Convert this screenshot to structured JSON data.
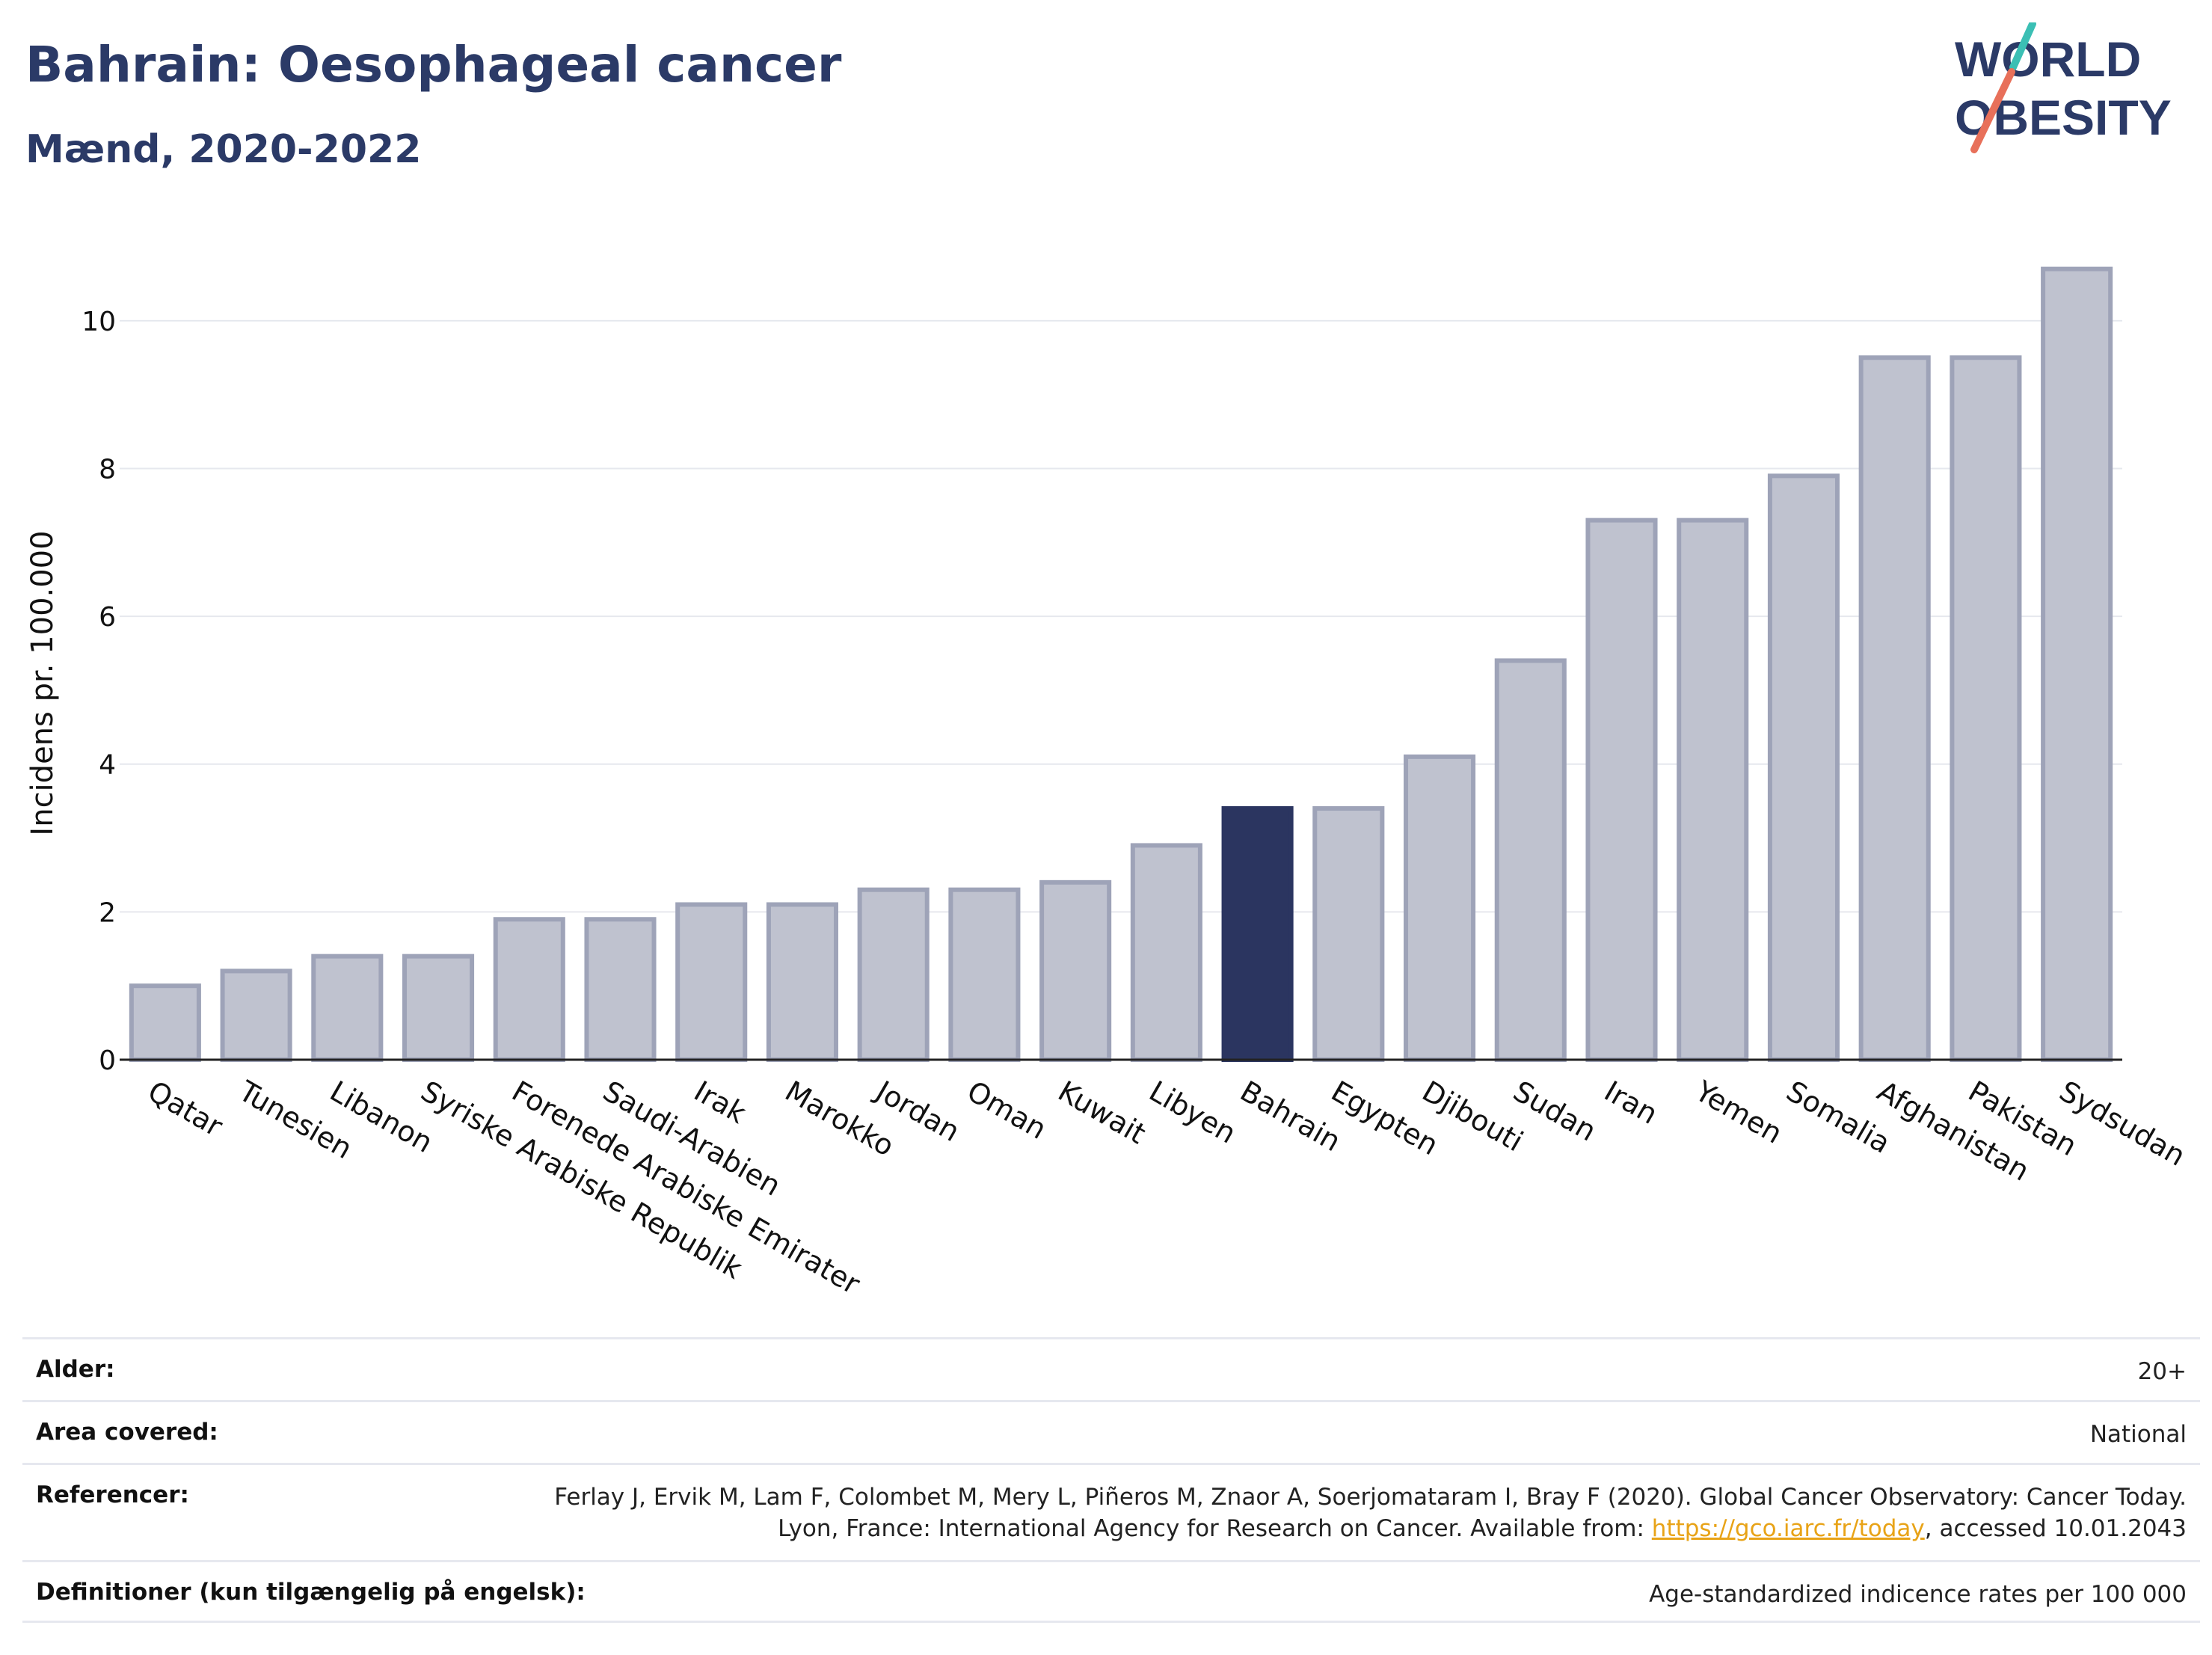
{
  "header": {
    "title": "Bahrain: Oesophageal cancer",
    "subtitle": "Mænd, 2020-2022"
  },
  "logo": {
    "line1": "WORLD",
    "line2": "OBESITY"
  },
  "chart_data": {
    "type": "bar",
    "categories": [
      "Qatar",
      "Tunesien",
      "Libanon",
      "Syriske Arabiske Republik",
      "Forenede Arabiske Emirater",
      "Saudi-Arabien",
      "Irak",
      "Marokko",
      "Jordan",
      "Oman",
      "Kuwait",
      "Libyen",
      "Bahrain",
      "Egypten",
      "Djibouti",
      "Sudan",
      "Iran",
      "Yemen",
      "Somalia",
      "Afghanistan",
      "Pakistan",
      "Sydsudan"
    ],
    "values": [
      1.0,
      1.2,
      1.4,
      1.4,
      1.9,
      1.9,
      2.1,
      2.1,
      2.3,
      2.3,
      2.4,
      2.9,
      3.4,
      3.4,
      4.1,
      5.4,
      7.3,
      7.3,
      7.9,
      9.5,
      9.5,
      10.7
    ],
    "highlight": "Bahrain",
    "ylabel": "Incidens pr. 100.000",
    "ylim": [
      0,
      11
    ],
    "yticks": [
      0,
      2,
      4,
      6,
      8,
      10
    ],
    "grid": true,
    "colors": {
      "bar": "#bfc2cf",
      "bar_border": "#9ea3b8",
      "highlight": "#2b3560"
    }
  },
  "table": {
    "rows": [
      {
        "label": "Alder:",
        "value": "20+"
      },
      {
        "label": "Area covered:",
        "value": "National"
      },
      {
        "label": "Referencer:",
        "value_pre": "Ferlay J, Ervik M, Lam F, Colombet M, Mery L, Piñeros M, Znaor A, Soerjomataram I, Bray F (2020). Global Cancer Observatory: Cancer Today. Lyon, France: International Agency for Research on Cancer. Available from: ",
        "link": "https://gco.iarc.fr/today",
        "value_post": ", accessed 10.01.2043"
      },
      {
        "label": "Definitioner (kun tilgængelig på engelsk):",
        "value": "Age-standardized indicence rates per 100 000"
      }
    ]
  }
}
